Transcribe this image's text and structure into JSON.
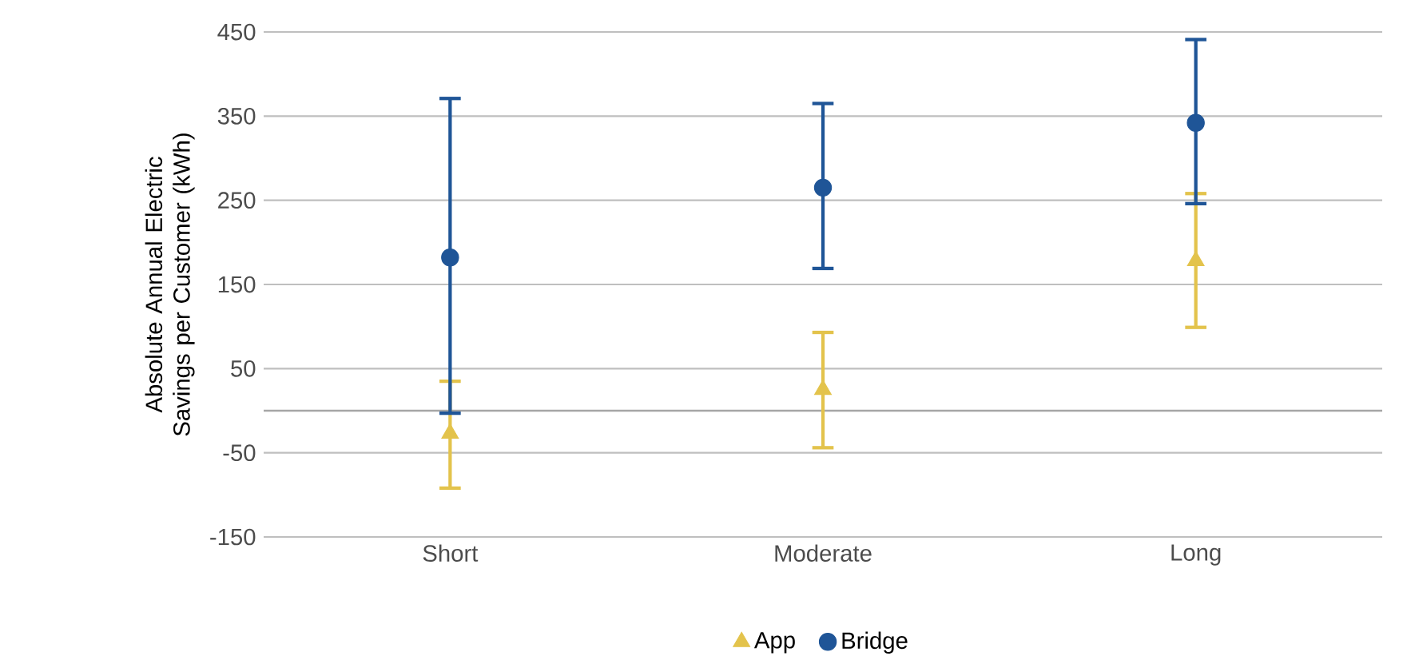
{
  "chart_data": {
    "type": "scatter",
    "ylabel": "Absolute Annual Electric Savings per Customer (kWh)",
    "categories": [
      "Short",
      "Moderate",
      "Long"
    ],
    "series": [
      {
        "name": "App",
        "color": "#e3c34c",
        "marker": "triangle",
        "values": [
          -27,
          25,
          178
        ],
        "errors": [
          [
            -92,
            35
          ],
          [
            -44,
            93
          ],
          [
            99,
            258
          ]
        ]
      },
      {
        "name": "Bridge",
        "color": "#1f5597",
        "marker": "circle",
        "values": [
          182,
          265,
          342
        ],
        "errors": [
          [
            -3,
            371
          ],
          [
            169,
            365
          ],
          [
            246,
            441
          ]
        ]
      }
    ],
    "ylim": [
      -150,
      450
    ],
    "yticks": [
      -150,
      -50,
      50,
      150,
      250,
      350,
      450
    ],
    "ref_lines": [
      {
        "axis": "y",
        "value": 0,
        "color": "#a6a6a6"
      }
    ],
    "grid": "y",
    "legend": "bottom"
  }
}
